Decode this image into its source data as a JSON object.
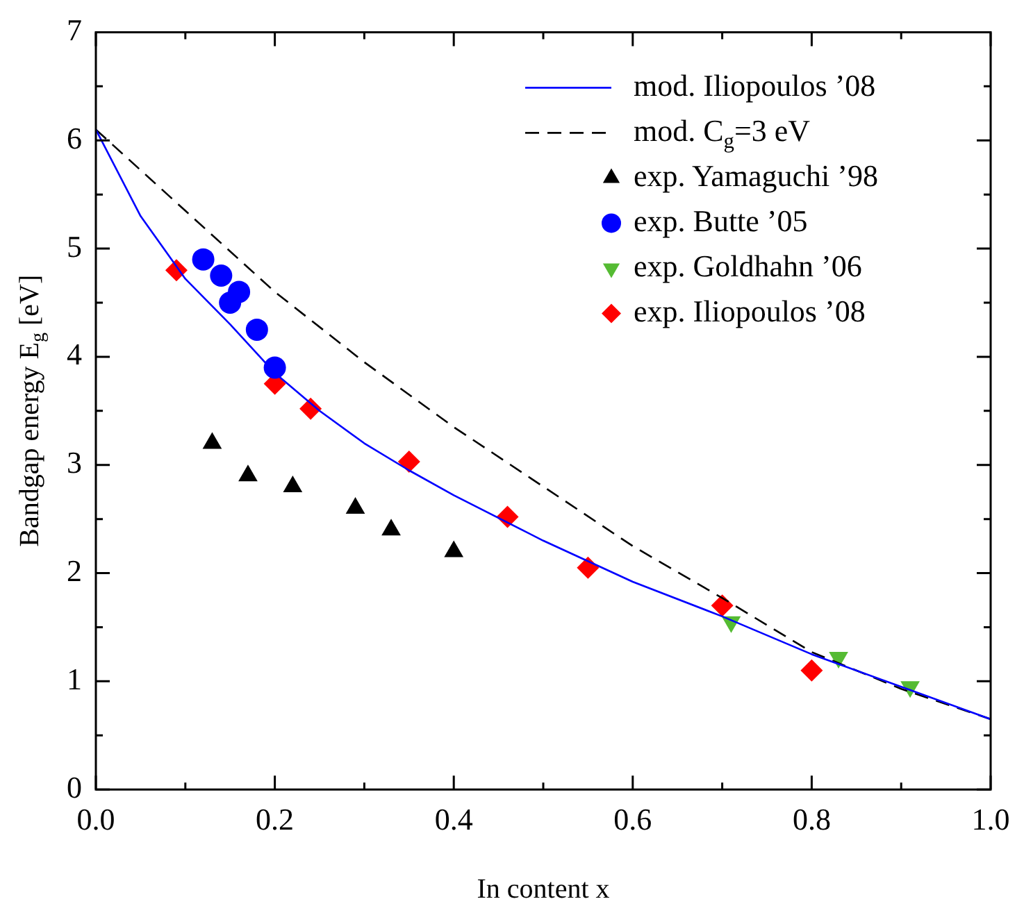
{
  "chart_data": {
    "type": "scatter",
    "xlabel": "In content x",
    "ylabel": "Bandgap energy E$_{g}$ [eV]",
    "xlim": [
      0,
      1
    ],
    "xticks": [
      {
        "value": 0,
        "label": "0.0"
      },
      {
        "value": 0.2,
        "label": "0.2"
      },
      {
        "value": 0.4,
        "label": "0.4"
      },
      {
        "value": 0.6,
        "label": "0.6"
      },
      {
        "value": 0.8,
        "label": "0.8"
      },
      {
        "value": 1,
        "label": "1.0"
      }
    ],
    "ylim": [
      0,
      7
    ],
    "yticks": [
      0,
      1,
      2,
      3,
      4,
      5,
      6,
      7
    ],
    "grid": false,
    "legend": "top right",
    "series": [
      {
        "name": "mod. Iliopoulos ’08",
        "type": "line",
        "color": "#0000ff",
        "marker": "none",
        "line_style": "solid",
        "x": [
          0,
          0.05,
          0.1,
          0.15,
          0.2,
          0.25,
          0.3,
          0.35,
          0.4,
          0.5,
          0.6,
          0.7,
          0.8,
          0.9,
          1.0
        ],
        "values": [
          6.1,
          5.3,
          4.72,
          4.3,
          3.85,
          3.5,
          3.2,
          2.95,
          2.72,
          2.3,
          1.92,
          1.6,
          1.25,
          0.95,
          0.65
        ]
      },
      {
        "name": "mod. C$_{g}$=3 eV",
        "type": "line",
        "color": "#000000",
        "marker": "none",
        "line_style": "dashed",
        "x": [
          0,
          0.1,
          0.2,
          0.3,
          0.4,
          0.5,
          0.6,
          0.7,
          0.8,
          0.9,
          1.0
        ],
        "values": [
          6.1,
          5.35,
          4.6,
          3.95,
          3.35,
          2.8,
          2.25,
          1.77,
          1.27,
          0.93,
          0.65
        ]
      },
      {
        "name": "exp. Yamaguchi ’98",
        "color": "#000000",
        "marker": "triangle",
        "x": [
          0.13,
          0.17,
          0.22,
          0.29,
          0.33,
          0.4
        ],
        "values": [
          3.2,
          2.9,
          2.8,
          2.6,
          2.4,
          2.2
        ]
      },
      {
        "name": "exp. Butte ’05",
        "color": "#0000ff",
        "marker": "circle",
        "x": [
          0.12,
          0.14,
          0.16,
          0.15,
          0.18,
          0.2
        ],
        "values": [
          4.9,
          4.75,
          4.6,
          4.5,
          4.25,
          3.9
        ]
      },
      {
        "name": "exp. Goldhahn ’06",
        "color": "#55bb33",
        "marker": "triangle-down",
        "x": [
          0.71,
          0.83,
          0.91
        ],
        "values": [
          1.55,
          1.22,
          0.95
        ]
      },
      {
        "name": "exp. Iliopoulos ’08",
        "color": "#ff0000",
        "marker": "diamond",
        "x": [
          0.09,
          0.2,
          0.24,
          0.35,
          0.46,
          0.55,
          0.7,
          0.8
        ],
        "values": [
          4.8,
          3.75,
          3.52,
          3.03,
          2.52,
          2.05,
          1.7,
          1.1
        ]
      }
    ]
  }
}
